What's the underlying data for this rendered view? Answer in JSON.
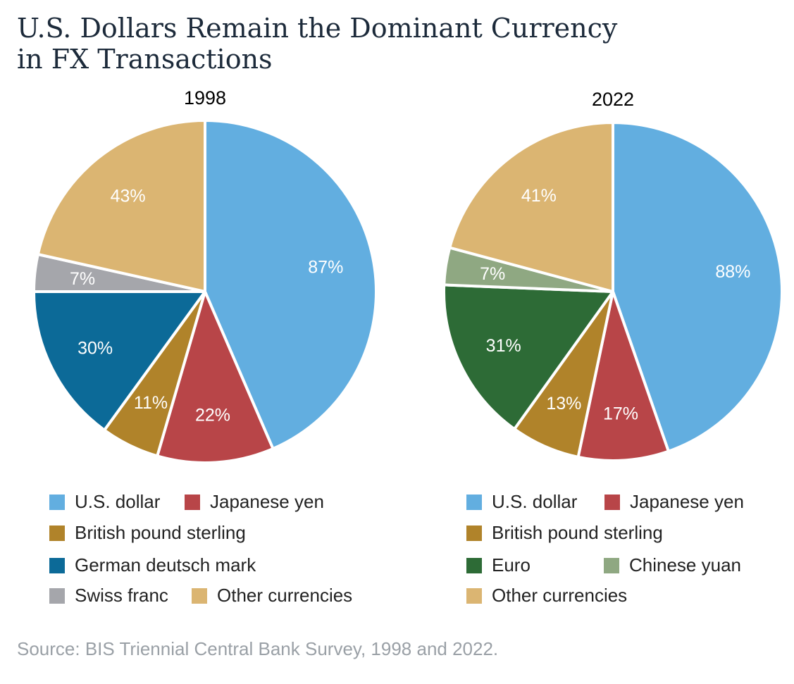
{
  "title": "U.S. Dollars Remain the Dominant Currency in FX Transactions",
  "source": "Source: BIS Triennial Central Bank Survey, 1998 and 2022.",
  "colors": {
    "us_dollar": "#62aee0",
    "japanese_yen": "#b84548",
    "british_pound": "#b0832a",
    "german_mark": "#0c6a98",
    "euro": "#2d6b36",
    "swiss_franc": "#a5a6ab",
    "chinese_yuan": "#8fa882",
    "other": "#dbb572"
  },
  "chart_data": [
    {
      "type": "pie",
      "title": "1998",
      "slices": [
        {
          "name": "U.S. dollar",
          "value": 87,
          "label": "87%",
          "color_key": "us_dollar"
        },
        {
          "name": "Japanese yen",
          "value": 22,
          "label": "22%",
          "color_key": "japanese_yen"
        },
        {
          "name": "British pound sterling",
          "value": 11,
          "label": "11%",
          "color_key": "british_pound"
        },
        {
          "name": "German deutsch mark",
          "value": 30,
          "label": "30%",
          "color_key": "german_mark"
        },
        {
          "name": "Swiss franc",
          "value": 7,
          "label": "7%",
          "color_key": "swiss_franc"
        },
        {
          "name": "Other currencies",
          "value": 43,
          "label": "43%",
          "color_key": "other"
        }
      ],
      "legend": [
        [
          "U.S. dollar",
          "Japanese yen"
        ],
        [
          "British pound sterling"
        ],
        [
          "German deutsch mark"
        ],
        [
          "Swiss franc",
          "Other currencies"
        ]
      ]
    },
    {
      "type": "pie",
      "title": "2022",
      "slices": [
        {
          "name": "U.S. dollar",
          "value": 88,
          "label": "88%",
          "color_key": "us_dollar"
        },
        {
          "name": "Japanese yen",
          "value": 17,
          "label": "17%",
          "color_key": "japanese_yen"
        },
        {
          "name": "British pound sterling",
          "value": 13,
          "label": "13%",
          "color_key": "british_pound"
        },
        {
          "name": "Euro",
          "value": 31,
          "label": "31%",
          "color_key": "euro"
        },
        {
          "name": "Chinese yuan",
          "value": 7,
          "label": "7%",
          "color_key": "chinese_yuan"
        },
        {
          "name": "Other currencies",
          "value": 41,
          "label": "41%",
          "color_key": "other"
        }
      ],
      "legend": [
        [
          "U.S. dollar",
          "Japanese yen"
        ],
        [
          "British pound sterling"
        ],
        [
          "Euro",
          "Chinese yuan"
        ],
        [
          "Other currencies"
        ]
      ]
    }
  ]
}
